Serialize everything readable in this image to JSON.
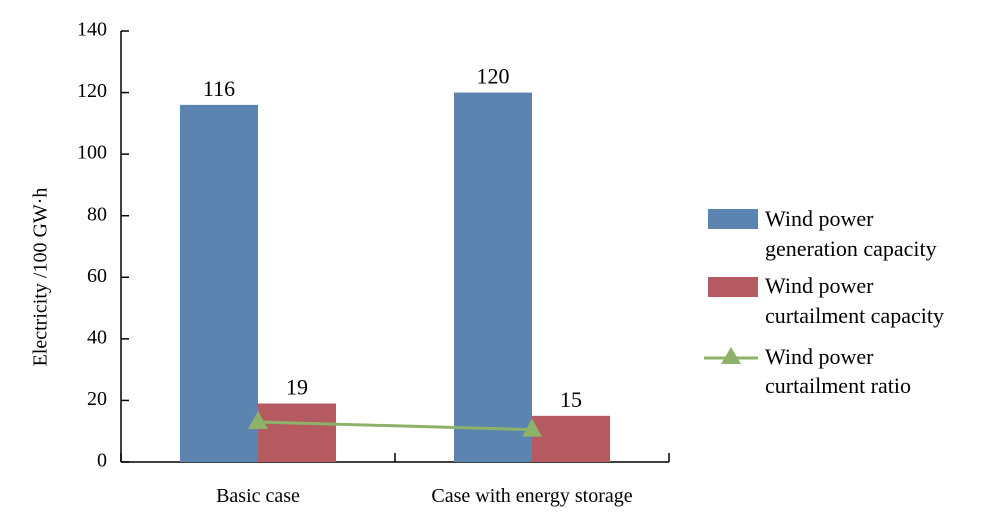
{
  "chart_data": {
    "type": "bar",
    "categories": [
      "Basic case",
      "Case with energy storage"
    ],
    "series": [
      {
        "name": "Wind power generation capacity",
        "kind": "bar",
        "color": "#5b84b1",
        "values": [
          116,
          120
        ],
        "data_labels": [
          "116",
          "120"
        ]
      },
      {
        "name": "Wind power curtailment capacity",
        "kind": "bar",
        "color": "#b65a62",
        "values": [
          19,
          15
        ],
        "data_labels": [
          "19",
          "15"
        ]
      },
      {
        "name": "Wind power curtailment ratio",
        "kind": "line",
        "marker": "triangle",
        "color": "#8fb26b",
        "values": [
          13,
          10.5
        ]
      }
    ],
    "ylabel": "Electricity /100 GW·h",
    "xlabel": "",
    "ylim": [
      0,
      140
    ],
    "yticks": [
      0,
      20,
      40,
      60,
      80,
      100,
      120,
      140
    ],
    "grid": false,
    "legend_position": "right"
  },
  "legend": {
    "items": [
      {
        "line1": "Wind power",
        "line2": "generation capacity"
      },
      {
        "line1": "Wind power",
        "line2": "curtailment capacity"
      },
      {
        "line1": "Wind power",
        "line2": "curtailment ratio"
      }
    ]
  }
}
